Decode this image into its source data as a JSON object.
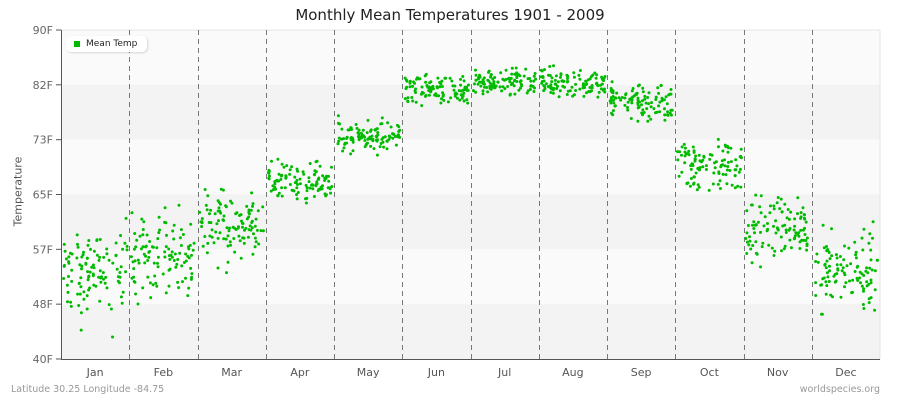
{
  "chart_data": {
    "type": "scatter",
    "title": "Monthly Mean Temperatures 1901 - 2009",
    "xlabel": "",
    "ylabel": "Temperature",
    "ylim": [
      40,
      90
    ],
    "yticks": [
      "90F",
      "82F",
      "73F",
      "65F",
      "57F",
      "48F",
      "40F"
    ],
    "categories": [
      "Jan",
      "Feb",
      "Mar",
      "Apr",
      "May",
      "Jun",
      "Jul",
      "Aug",
      "Sep",
      "Oct",
      "Nov",
      "Dec"
    ],
    "grid": {
      "horizontal_bands": true,
      "vertical_dashed_month_dividers": true
    },
    "legend": {
      "position": "top-left",
      "entries": [
        "Mean Temp"
      ]
    },
    "series": [
      {
        "name": "Mean Temp",
        "color": "#00bb00",
        "points_per_month": 109,
        "monthly_summary": [
          {
            "month": "Jan",
            "mean": 53.0,
            "min": 42.0,
            "max": 65.0
          },
          {
            "month": "Feb",
            "mean": 55.5,
            "min": 45.0,
            "max": 65.0
          },
          {
            "month": "Mar",
            "mean": 60.5,
            "min": 53.0,
            "max": 69.0
          },
          {
            "month": "Apr",
            "mean": 67.0,
            "min": 63.0,
            "max": 72.0
          },
          {
            "month": "May",
            "mean": 73.5,
            "min": 70.0,
            "max": 78.0
          },
          {
            "month": "Jun",
            "mean": 81.0,
            "min": 77.0,
            "max": 84.5
          },
          {
            "month": "Jul",
            "mean": 82.0,
            "min": 79.0,
            "max": 85.0
          },
          {
            "month": "Aug",
            "mean": 82.0,
            "min": 79.5,
            "max": 85.0
          },
          {
            "month": "Sep",
            "mean": 79.0,
            "min": 74.0,
            "max": 83.0
          },
          {
            "month": "Oct",
            "mean": 69.5,
            "min": 63.0,
            "max": 76.0
          },
          {
            "month": "Nov",
            "mean": 60.0,
            "min": 54.0,
            "max": 68.0
          },
          {
            "month": "Dec",
            "mean": 53.5,
            "min": 46.0,
            "max": 65.0
          }
        ]
      }
    ]
  },
  "footer": {
    "location": "Latitude 30.25 Longitude -84.75",
    "source": "worldspecies.org"
  }
}
